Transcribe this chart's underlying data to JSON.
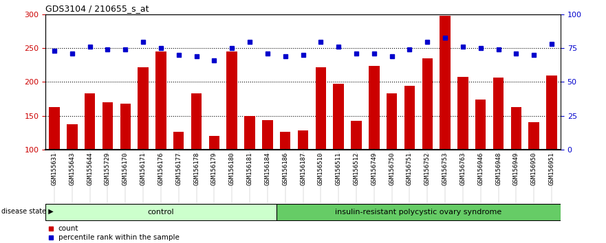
{
  "title": "GDS3104 / 210655_s_at",
  "samples": [
    "GSM155631",
    "GSM155643",
    "GSM155644",
    "GSM155729",
    "GSM156170",
    "GSM156171",
    "GSM156176",
    "GSM156177",
    "GSM156178",
    "GSM156179",
    "GSM156180",
    "GSM156181",
    "GSM156184",
    "GSM156186",
    "GSM156187",
    "GSM156510",
    "GSM156511",
    "GSM156512",
    "GSM156749",
    "GSM156750",
    "GSM156751",
    "GSM156752",
    "GSM156753",
    "GSM156763",
    "GSM156946",
    "GSM156948",
    "GSM156949",
    "GSM156950",
    "GSM156951"
  ],
  "counts": [
    163,
    137,
    183,
    170,
    168,
    222,
    245,
    126,
    183,
    120,
    245,
    150,
    143,
    126,
    128,
    222,
    197,
    142,
    224,
    183,
    194,
    235,
    298,
    208,
    174,
    207,
    163,
    140,
    210
  ],
  "percentiles": [
    73,
    71,
    76,
    74,
    74,
    80,
    75,
    70,
    69,
    66,
    75,
    80,
    71,
    69,
    70,
    80,
    76,
    71,
    71,
    69,
    74,
    80,
    83,
    76,
    75,
    74,
    71,
    70,
    78
  ],
  "control_count": 13,
  "disease_count": 16,
  "ylim_left": [
    100,
    300
  ],
  "ylim_right": [
    0,
    100
  ],
  "yticks_left": [
    100,
    150,
    200,
    250,
    300
  ],
  "yticks_right": [
    0,
    25,
    50,
    75,
    100
  ],
  "bar_color": "#cc0000",
  "dot_color": "#0000cc",
  "control_color": "#ccffcc",
  "disease_color": "#66cc66",
  "label_count": "count",
  "label_percentile": "percentile rank within the sample",
  "label_disease_state": "disease state",
  "label_control": "control",
  "label_disease": "insulin-resistant polycystic ovary syndrome",
  "xlabel_fontsize": 6.5,
  "ylabel_left_color": "#cc0000",
  "ylabel_right_color": "#0000cc",
  "xtick_bg_color": "#d8d8d8"
}
